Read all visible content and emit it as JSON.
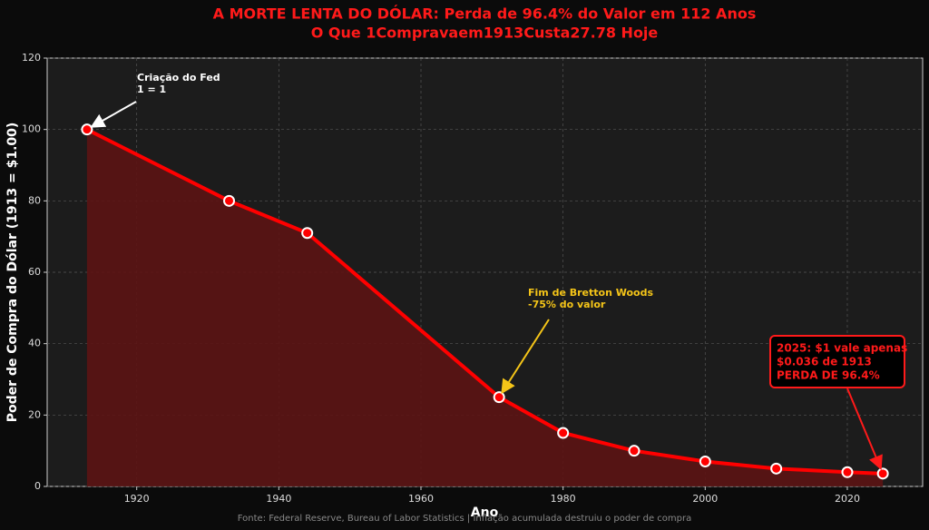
{
  "chart_data": {
    "type": "line",
    "title": [
      "A MORTE LENTA DO DÓLAR: Perda de 96.4% do Valor em 112 Anos",
      "O Que 1Compravaem1913Custa27.78 Hoje"
    ],
    "x": [
      1913,
      1933,
      1944,
      1971,
      1980,
      1990,
      2000,
      2010,
      2020,
      2025
    ],
    "values": [
      100,
      80,
      71,
      25,
      15,
      10,
      7,
      5,
      4,
      3.6
    ],
    "color": "#ff0000",
    "fill_color": "#5c1414",
    "xlabel": "Ano",
    "ylabel": "Poder de Compra do Dólar (1913 = $1.00)",
    "xlim": [
      1907.4,
      2030.6
    ],
    "ylim": [
      0,
      120
    ],
    "xticks": [
      1920,
      1940,
      1960,
      1980,
      2000,
      2020
    ],
    "yticks": [
      0,
      20,
      40,
      60,
      80,
      100,
      120
    ],
    "grid": true,
    "annotations": [
      {
        "lines": [
          "Criação do Fed",
          "1 = 1"
        ],
        "color": "#ffffff"
      },
      {
        "lines": [
          "Fim de Bretton Woods",
          "-75% do valor"
        ],
        "color": "#f5c518"
      },
      {
        "lines": [
          "2025: $1 vale apenas",
          "$0.036 de 1913",
          "PERDA DE 96.4%"
        ],
        "color": "#ff1a1a"
      }
    ],
    "footer": "Fonte: Federal Reserve, Bureau of Labor Statistics | Inflação acumulada destruiu o poder de compra"
  }
}
